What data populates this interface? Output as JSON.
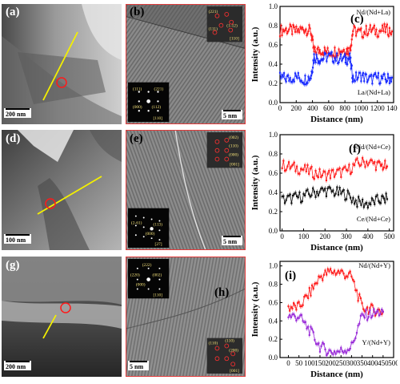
{
  "panels": {
    "a": {
      "label": "(a)",
      "scale": "200 nm"
    },
    "b": {
      "label": "(b)",
      "scale": "5 nm",
      "saed": [
        {
          "t": "(111)"
        },
        {
          "t": "(221)"
        },
        {
          "t": "(000)"
        },
        {
          "t": "(112)"
        }
      ],
      "saed_zone": "[110]",
      "fft": [
        {
          "t": "(221)"
        },
        {
          "t": "(1-12)"
        },
        {
          "t": "(111)"
        }
      ],
      "fft_zone": "[110]"
    },
    "d": {
      "label": "(d)",
      "scale": "100 nm"
    },
    "e": {
      "label": "(e)",
      "scale": "5 nm",
      "saed": [
        {
          "t": "(2-61)"
        },
        {
          "t": "(113)"
        },
        {
          "t": "(000)"
        }
      ],
      "saed_zone": "[27]",
      "fft": [
        {
          "t": "(002)"
        },
        {
          "t": "(110)"
        },
        {
          "t": "(000)"
        }
      ],
      "fft_zone": "[001]"
    },
    "g": {
      "label": "(g)",
      "scale": "200 nm"
    },
    "h": {
      "label": "(h)",
      "scale": "5 nm",
      "saed": [
        {
          "t": "(222)"
        },
        {
          "t": "(220)"
        },
        {
          "t": "(002)"
        },
        {
          "t": "(000)"
        }
      ],
      "saed_zone": "[110]",
      "fft": [
        {
          "t": "(110)"
        },
        {
          "t": "(110)"
        },
        {
          "t": "(200)"
        }
      ],
      "fft_zone": "[001]"
    }
  },
  "chart_data": [
    {
      "type": "scatter",
      "panel_label": "(c)",
      "xlabel": "Distance (nm)",
      "ylabel": "Intensity (a.u.)",
      "xlim": [
        0,
        1400
      ],
      "ylim": [
        0.0,
        1.0
      ],
      "xticks": [
        0,
        200,
        400,
        600,
        800,
        1000,
        1200,
        1400
      ],
      "yticks": [
        0.0,
        0.2,
        0.4,
        0.6,
        0.8,
        1.0
      ],
      "series": [
        {
          "name": "Nd/(Nd+La)",
          "color": "#ff2020",
          "x": [
            0,
            100,
            200,
            300,
            380,
            420,
            500,
            600,
            700,
            800,
            860,
            900,
            1000,
            1100,
            1200,
            1300,
            1380
          ],
          "y": [
            0.75,
            0.76,
            0.74,
            0.77,
            0.74,
            0.52,
            0.55,
            0.52,
            0.54,
            0.55,
            0.54,
            0.75,
            0.72,
            0.76,
            0.74,
            0.76,
            0.74
          ]
        },
        {
          "name": "La/(Nd+La)",
          "color": "#1a2cff",
          "x": [
            0,
            100,
            200,
            300,
            380,
            420,
            500,
            600,
            700,
            800,
            860,
            900,
            1000,
            1100,
            1200,
            1300,
            1380
          ],
          "y": [
            0.26,
            0.25,
            0.27,
            0.24,
            0.27,
            0.48,
            0.45,
            0.48,
            0.46,
            0.45,
            0.46,
            0.25,
            0.28,
            0.24,
            0.26,
            0.24,
            0.26
          ]
        }
      ]
    },
    {
      "type": "scatter",
      "panel_label": "(f)",
      "xlabel": "Distance (nm)",
      "ylabel": "Intensity (a.u.)",
      "xlim": [
        -10,
        520
      ],
      "ylim": [
        0.0,
        1.0
      ],
      "xticks": [
        0,
        100,
        200,
        300,
        400,
        500
      ],
      "yticks": [
        0.0,
        0.2,
        0.4,
        0.6,
        0.8,
        1.0
      ],
      "series": [
        {
          "name": "Nd/(Nd+Ce)",
          "color": "#ff2020",
          "x": [
            0,
            50,
            100,
            150,
            200,
            250,
            300,
            350,
            400,
            450,
            490
          ],
          "y": [
            0.68,
            0.66,
            0.64,
            0.6,
            0.58,
            0.6,
            0.62,
            0.7,
            0.72,
            0.68,
            0.67
          ]
        },
        {
          "name": "Ce/(Nd+Ce)",
          "color": "#111111",
          "x": [
            0,
            50,
            100,
            150,
            200,
            250,
            300,
            350,
            400,
            450,
            490
          ],
          "y": [
            0.32,
            0.34,
            0.36,
            0.4,
            0.42,
            0.4,
            0.38,
            0.3,
            0.28,
            0.32,
            0.33
          ]
        }
      ]
    },
    {
      "type": "scatter",
      "panel_label": "(i)",
      "xlabel": "Distance (nm)",
      "ylabel": "Intensity (a.u.)",
      "xlim": [
        -40,
        500
      ],
      "ylim": [
        0.0,
        1.05
      ],
      "xticks": [
        0,
        50,
        100,
        150,
        200,
        250,
        300,
        350,
        400,
        450,
        500
      ],
      "yticks": [
        0.0,
        0.2,
        0.4,
        0.6,
        0.8,
        1.0
      ],
      "series": [
        {
          "name": "Nd/(Nd+Y)",
          "color": "#ff2020",
          "x": [
            0,
            50,
            100,
            150,
            200,
            250,
            300,
            350,
            400,
            450
          ],
          "y": [
            0.55,
            0.55,
            0.7,
            0.88,
            0.94,
            0.93,
            0.88,
            0.55,
            0.52,
            0.5
          ]
        },
        {
          "name": "Y/(Nd+Y)",
          "color": "#9a2cd8",
          "x": [
            0,
            50,
            100,
            150,
            200,
            250,
            300,
            350,
            400,
            450
          ],
          "y": [
            0.45,
            0.45,
            0.3,
            0.12,
            0.06,
            0.07,
            0.12,
            0.45,
            0.48,
            0.5
          ]
        }
      ]
    }
  ]
}
